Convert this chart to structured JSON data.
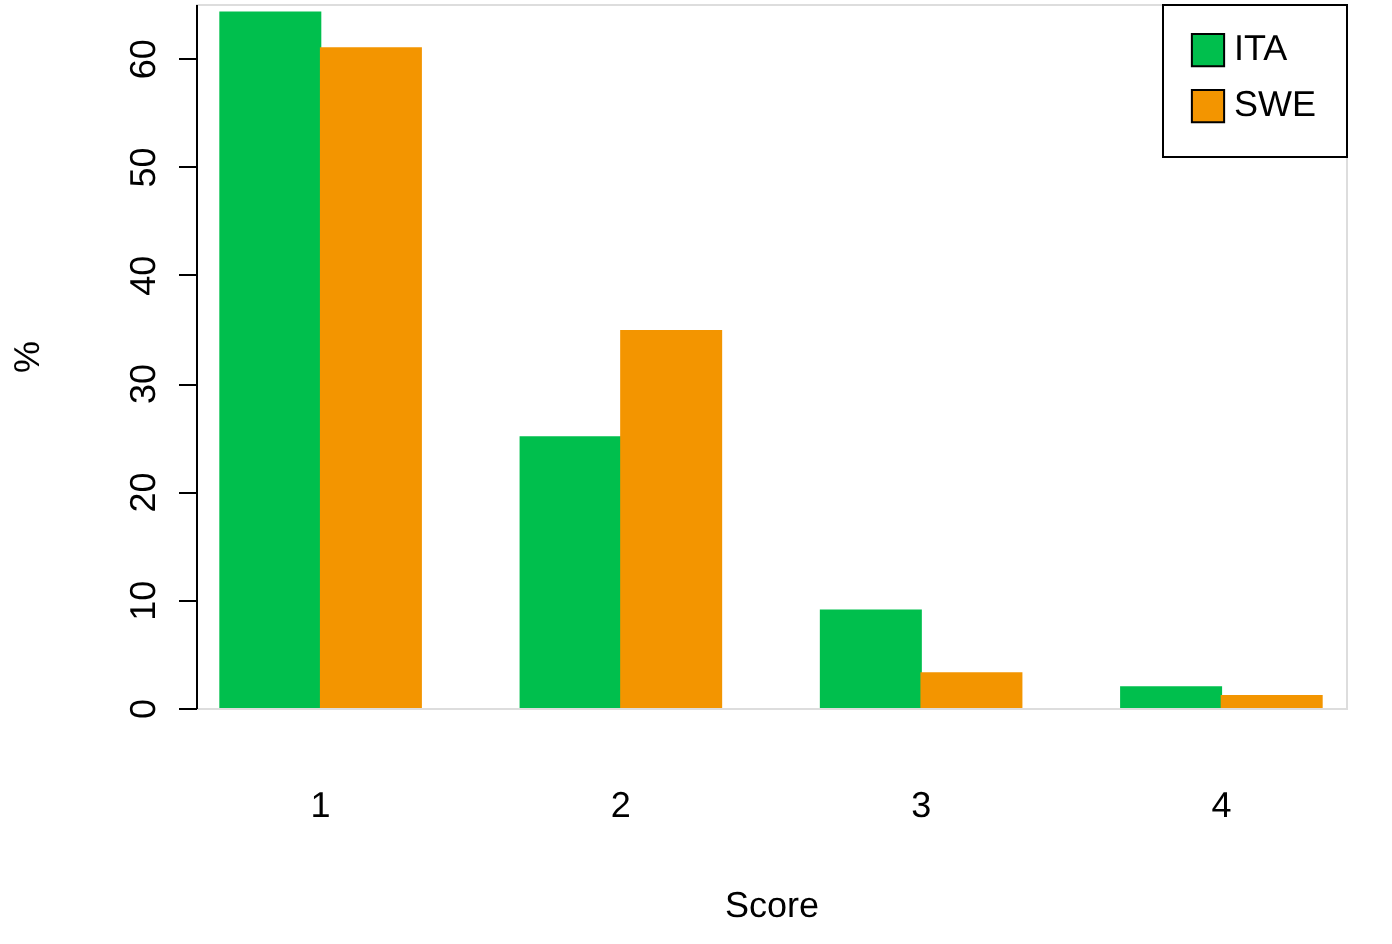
{
  "chart_data": {
    "type": "bar",
    "xlabel": "Score",
    "ylabel": "%",
    "categories": [
      "1",
      "2",
      "3",
      "4"
    ],
    "series": [
      {
        "name": "ITA",
        "color": "#00bf4d",
        "values": [
          64.3,
          25.1,
          9.1,
          2.0
        ]
      },
      {
        "name": "SWE",
        "color": "#f39500",
        "values": [
          61.0,
          34.9,
          3.3,
          1.2
        ]
      }
    ],
    "ylim": [
      0,
      65
    ],
    "yticks": [
      0,
      10,
      20,
      30,
      40,
      50,
      60
    ],
    "grid": false,
    "legend": "top right"
  }
}
